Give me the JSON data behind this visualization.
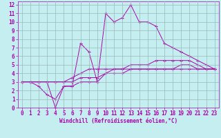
{
  "xlabel": "Windchill (Refroidissement éolien,°C)",
  "bg_color": "#c5eef0",
  "line_color": "#aa00aa",
  "grid_color": "#9ab8b8",
  "xlim": [
    -0.5,
    23.5
  ],
  "ylim": [
    0,
    12.4
  ],
  "xticks": [
    0,
    1,
    2,
    3,
    4,
    5,
    6,
    7,
    8,
    9,
    10,
    11,
    12,
    13,
    14,
    15,
    16,
    17,
    18,
    19,
    20,
    21,
    22,
    23
  ],
  "yticks": [
    0,
    1,
    2,
    3,
    4,
    5,
    6,
    7,
    8,
    9,
    10,
    11,
    12
  ],
  "series": [
    {
      "x": [
        0,
        1,
        2,
        3,
        4,
        5,
        6,
        7,
        8,
        9,
        10,
        11,
        12,
        13,
        14,
        15,
        16,
        17,
        18,
        19,
        20,
        21,
        22,
        23
      ],
      "y": [
        3,
        3,
        3,
        3,
        0,
        2.5,
        2.5,
        3,
        3,
        3,
        4,
        4.5,
        4.5,
        4.5,
        4.5,
        4.5,
        4.5,
        4.5,
        4.5,
        4.5,
        4.5,
        4.5,
        4.5,
        4.5
      ]
    },
    {
      "x": [
        0,
        1,
        2,
        3,
        4,
        5,
        6,
        7,
        8,
        9,
        10,
        11,
        12,
        13,
        14,
        15,
        16,
        17,
        18,
        19,
        20,
        21,
        22,
        23
      ],
      "y": [
        3,
        3,
        2.5,
        1.5,
        1,
        2.5,
        2.5,
        7.5,
        6.5,
        3,
        11,
        10,
        10.5,
        12,
        10,
        10,
        9.5,
        7.5,
        7,
        6.5,
        6,
        5.5,
        5,
        4.5
      ]
    },
    {
      "x": [
        0,
        1,
        2,
        3,
        4,
        5,
        6,
        7,
        8,
        9,
        10,
        11,
        12,
        13,
        14,
        15,
        16,
        17,
        18,
        19,
        20,
        21,
        22,
        23
      ],
      "y": [
        3,
        3,
        3,
        3,
        3,
        3,
        3.5,
        4,
        4.5,
        4.5,
        4.5,
        4.5,
        4.5,
        5,
        5,
        5,
        5.5,
        5.5,
        5.5,
        5.5,
        5.5,
        5,
        4.5,
        4.5
      ]
    },
    {
      "x": [
        0,
        1,
        2,
        3,
        4,
        5,
        6,
        7,
        8,
        9,
        10,
        11,
        12,
        13,
        14,
        15,
        16,
        17,
        18,
        19,
        20,
        21,
        22,
        23
      ],
      "y": [
        3,
        3,
        3,
        3,
        3,
        3,
        3,
        3.5,
        3.5,
        3.5,
        4,
        4,
        4,
        4.5,
        4.5,
        4.5,
        4.5,
        4.5,
        4.5,
        5,
        5,
        4.5,
        4.5,
        4.5
      ]
    }
  ],
  "axis_fontsize": 5.5,
  "tick_fontsize": 5.5,
  "marker": "+"
}
